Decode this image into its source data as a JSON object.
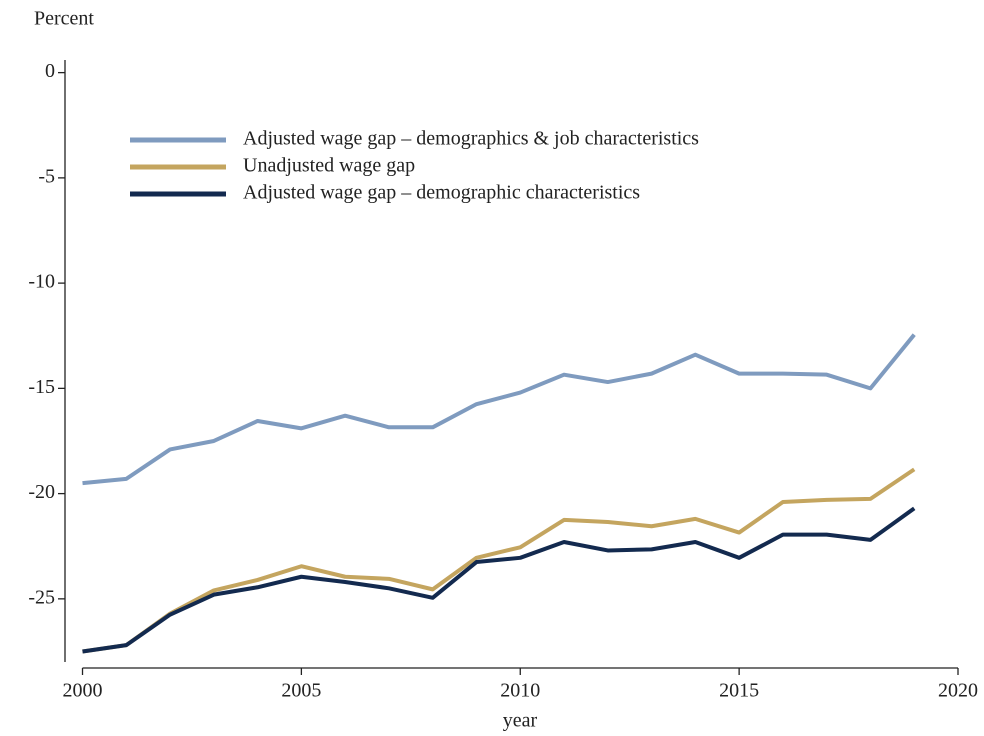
{
  "chart_data": {
    "type": "line",
    "y_label": "Percent",
    "x_label": "year",
    "x": [
      2000,
      2001,
      2002,
      2003,
      2004,
      2005,
      2006,
      2007,
      2008,
      2009,
      2010,
      2011,
      2012,
      2013,
      2014,
      2015,
      2016,
      2017,
      2018,
      2019
    ],
    "series": [
      {
        "name": "Adjusted wage gap – demographics & job characteristics",
        "color": "#7f9bbf",
        "values": [
          -19.5,
          -19.3,
          -17.9,
          -17.5,
          -16.55,
          -16.9,
          -16.3,
          -16.85,
          -16.85,
          -15.75,
          -15.2,
          -14.35,
          -14.7,
          -14.3,
          -13.4,
          -14.3,
          -14.3,
          -14.35,
          -15.0,
          -12.45
        ]
      },
      {
        "name": "Unadjusted wage gap",
        "color": "#c4a55f",
        "values": [
          -27.5,
          -27.2,
          -25.7,
          -24.6,
          -24.1,
          -23.45,
          -23.95,
          -24.05,
          -24.55,
          -23.05,
          -22.55,
          -21.25,
          -21.35,
          -21.55,
          -21.2,
          -21.85,
          -20.4,
          -20.3,
          -20.25,
          -18.85
        ]
      },
      {
        "name": "Adjusted wage gap – demographic characteristics",
        "color": "#132a4f",
        "values": [
          -27.5,
          -27.2,
          -25.75,
          -24.8,
          -24.45,
          -23.95,
          -24.2,
          -24.5,
          -24.95,
          -23.25,
          -23.05,
          -22.3,
          -22.7,
          -22.65,
          -22.3,
          -23.05,
          -21.95,
          -21.95,
          -22.2,
          -20.7
        ]
      }
    ],
    "xlim": [
      1999.6,
      2020
    ],
    "xticks": [
      2000,
      2005,
      2010,
      2015,
      2020
    ],
    "ylim": [
      -28,
      0.6
    ],
    "yticks": [
      0,
      -5,
      -10,
      -15,
      -20,
      -25
    ],
    "grid": false,
    "legend": "upper left"
  }
}
